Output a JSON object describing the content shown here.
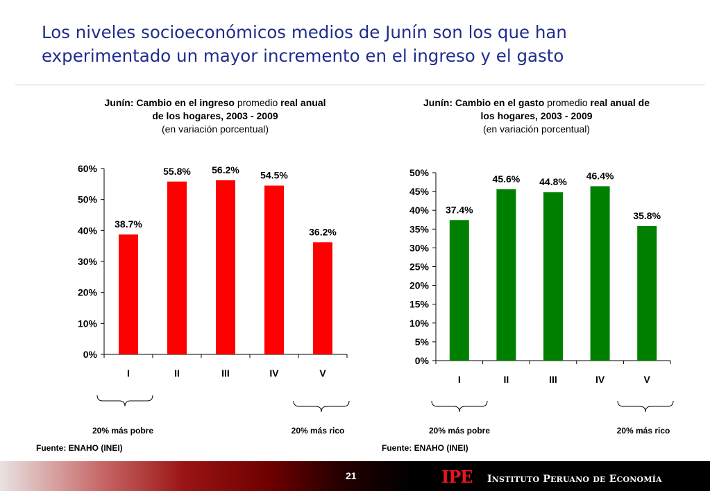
{
  "slide": {
    "title_line1": "Los niveles socioeconómicos medios de Junín son los que han",
    "title_line2": "experimentado un mayor incremento en el ingreso y el gasto",
    "page_number": "21",
    "footer_logo": "IPE",
    "footer_name": {
      "w1_cap": "I",
      "w1_rest": "NSTITUTO",
      "w2_cap": "P",
      "w2_rest": "ERUANO",
      "w3": "DE",
      "w4_cap": "E",
      "w4_rest": "CONOMÍA"
    },
    "colors": {
      "title": "#1f2d8c",
      "income_bars": "#ff0000",
      "spending_bars": "#008000",
      "logo": "#e8161d"
    }
  },
  "income_chart": {
    "title_bold1": "Junín: Cambio en el ingreso",
    "title_normal": " promedio ",
    "title_bold2": "real anual",
    "title_line2": "de los hogares, 2003 - 2009",
    "title_line3": "(en variación porcentual)",
    "brace_left_label": "20% más pobre",
    "brace_right_label": "20% más rico",
    "source": "Fuente: ENAHO (INEI)"
  },
  "spending_chart": {
    "title_bold1": "Junín: Cambio en el gasto",
    "title_normal": " promedio ",
    "title_bold2": "real anual de",
    "title_line2": "los hogares, 2003 - 2009",
    "title_line3": "(en variación porcentual)",
    "brace_left_label": "20% más pobre",
    "brace_right_label": "20% más rico",
    "source": "Fuente: ENAHO (INEI)"
  },
  "chart_data": [
    {
      "type": "bar",
      "title": "Junín: Cambio en el ingreso promedio real anual de los hogares, 2003 - 2009",
      "categories": [
        "I",
        "II",
        "III",
        "IV",
        "V"
      ],
      "values": [
        38.7,
        55.8,
        56.2,
        54.5,
        36.2
      ],
      "value_labels": [
        "38.7%",
        "55.8%",
        "56.2%",
        "54.5%",
        "36.2%"
      ],
      "yticks": [
        "0%",
        "10%",
        "20%",
        "30%",
        "40%",
        "50%",
        "60%"
      ],
      "ylim": [
        0,
        60
      ],
      "color": "#ff0000",
      "grid": false
    },
    {
      "type": "bar",
      "title": "Junín: Cambio en el gasto promedio real anual de los hogares, 2003 - 2009",
      "categories": [
        "I",
        "II",
        "III",
        "IV",
        "V"
      ],
      "values": [
        37.4,
        45.6,
        44.8,
        46.4,
        35.8
      ],
      "value_labels": [
        "37.4%",
        "45.6%",
        "44.8%",
        "46.4%",
        "35.8%"
      ],
      "yticks": [
        "0%",
        "5%",
        "10%",
        "15%",
        "20%",
        "25%",
        "30%",
        "35%",
        "40%",
        "45%",
        "50%"
      ],
      "ylim": [
        0,
        50
      ],
      "color": "#008000",
      "grid": false
    }
  ]
}
